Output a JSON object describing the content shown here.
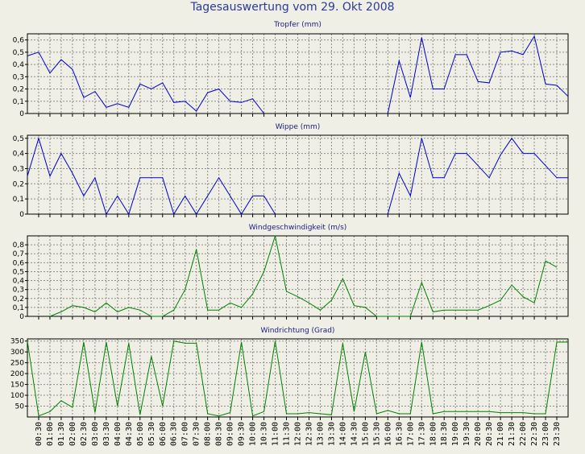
{
  "title": "Tagesauswertung vom 29. Okt 2008",
  "colors": {
    "blue": "#0000cc",
    "green": "#008000",
    "grid": "#8c8c8c",
    "background": "#efefe6"
  },
  "x_labels": [
    "00:30",
    "01:00",
    "01:30",
    "02:00",
    "02:30",
    "03:00",
    "03:30",
    "04:00",
    "04:30",
    "05:00",
    "05:30",
    "06:00",
    "06:30",
    "07:00",
    "07:30",
    "08:00",
    "08:30",
    "09:00",
    "09:30",
    "10:00",
    "10:30",
    "11:00",
    "11:30",
    "12:00",
    "12:30",
    "13:00",
    "13:30",
    "14:00",
    "14:30",
    "15:00",
    "15:30",
    "16:00",
    "16:30",
    "17:00",
    "17:30",
    "18:00",
    "18:30",
    "19:00",
    "19:30",
    "20:00",
    "20:30",
    "21:00",
    "21:30",
    "22:00",
    "22:30",
    "23:00",
    "23:30"
  ],
  "chart_data": [
    {
      "type": "line",
      "title": "Tropfer (mm)",
      "color": "#0000cc",
      "ylim": [
        0,
        0.65
      ],
      "yticks": [
        0,
        0.1,
        0.2,
        0.3,
        0.4,
        0.5,
        0.6
      ],
      "ytick_labels": [
        "0",
        "0,1",
        "0,2",
        "0,3",
        "0,4",
        "0,5",
        "0,6"
      ],
      "x": [
        "00:00",
        "00:30",
        "01:00",
        "01:30",
        "02:00",
        "02:30",
        "03:00",
        "03:30",
        "04:00",
        "04:30",
        "05:00",
        "05:30",
        "06:00",
        "06:30",
        "07:00",
        "07:30",
        "08:00",
        "08:30",
        "09:00",
        "09:30",
        "10:00",
        "10:30",
        "11:00",
        "11:30",
        "12:00",
        "12:30",
        "13:00",
        "13:30",
        "14:00",
        "14:30",
        "15:00",
        "15:30",
        "16:00",
        "16:30",
        "17:00",
        "17:30",
        "18:00",
        "18:30",
        "19:00",
        "19:30",
        "20:00",
        "20:30",
        "21:00",
        "21:30",
        "22:00",
        "22:30",
        "23:00",
        "23:30",
        "23:59"
      ],
      "values": [
        0.47,
        0.5,
        0.33,
        0.44,
        0.36,
        0.13,
        0.18,
        0.05,
        0.08,
        0.05,
        0.24,
        0.2,
        0.25,
        0.09,
        0.1,
        0.02,
        0.17,
        0.2,
        0.1,
        0.09,
        0.12,
        0,
        null,
        null,
        null,
        null,
        null,
        null,
        null,
        null,
        null,
        null,
        0,
        0.43,
        0.13,
        0.62,
        0.2,
        0.2,
        0.48,
        0.48,
        0.26,
        0.25,
        0.5,
        0.51,
        0.48,
        0.63,
        0.24,
        0.23,
        0.14
      ]
    },
    {
      "type": "line",
      "title": "Wippe (mm)",
      "color": "#0000cc",
      "ylim": [
        0,
        0.52
      ],
      "yticks": [
        0,
        0.1,
        0.2,
        0.3,
        0.4,
        0.5
      ],
      "ytick_labels": [
        "0",
        "0,1",
        "0,2",
        "0,3",
        "0,4",
        "0,5"
      ],
      "x": [
        "00:00",
        "00:30",
        "01:00",
        "01:30",
        "02:00",
        "02:30",
        "03:00",
        "03:30",
        "04:00",
        "04:30",
        "05:00",
        "05:30",
        "06:00",
        "06:30",
        "07:00",
        "07:30",
        "08:00",
        "08:30",
        "09:00",
        "09:30",
        "10:00",
        "10:30",
        "11:00",
        "11:30",
        "12:00",
        "12:30",
        "13:00",
        "13:30",
        "14:00",
        "14:30",
        "15:00",
        "15:30",
        "16:00",
        "16:30",
        "17:00",
        "17:30",
        "18:00",
        "18:30",
        "19:00",
        "19:30",
        "20:00",
        "20:30",
        "21:00",
        "21:30",
        "22:00",
        "22:30",
        "23:00",
        "23:30",
        "23:59"
      ],
      "values": [
        0.25,
        0.5,
        0.25,
        0.4,
        0.27,
        0.12,
        0.24,
        0,
        0.12,
        0,
        0.24,
        0.24,
        0.24,
        0,
        0.12,
        0,
        0.12,
        0.24,
        0.12,
        0,
        0.12,
        0.12,
        0,
        null,
        null,
        null,
        null,
        null,
        null,
        null,
        null,
        null,
        0,
        0.27,
        0.12,
        0.5,
        0.24,
        0.24,
        0.4,
        0.4,
        0.32,
        0.24,
        0.39,
        0.5,
        0.4,
        0.4,
        0.32,
        0.24,
        0.24
      ]
    },
    {
      "type": "line",
      "title": "Windgeschwindigkeit (m/s)",
      "color": "#008000",
      "ylim": [
        0,
        0.9
      ],
      "yticks": [
        0,
        0.1,
        0.2,
        0.3,
        0.4,
        0.5,
        0.6,
        0.7,
        0.8
      ],
      "ytick_labels": [
        "0",
        "0,1",
        "0,2",
        "0,3",
        "0,4",
        "0,5",
        "0,6",
        "0,7",
        "0,8"
      ],
      "x": [
        "00:00",
        "00:30",
        "01:00",
        "01:30",
        "02:00",
        "02:30",
        "03:00",
        "03:30",
        "04:00",
        "04:30",
        "05:00",
        "05:30",
        "06:00",
        "06:30",
        "07:00",
        "07:30",
        "08:00",
        "08:30",
        "09:00",
        "09:30",
        "10:00",
        "10:30",
        "11:00",
        "11:30",
        "12:00",
        "12:30",
        "13:00",
        "13:30",
        "14:00",
        "14:30",
        "15:00",
        "15:30",
        "16:00",
        "16:30",
        "17:00",
        "17:30",
        "18:00",
        "18:30",
        "19:00",
        "19:30",
        "20:00",
        "20:30",
        "21:00",
        "21:30",
        "22:00",
        "22:30",
        "23:00",
        "23:30",
        "23:59"
      ],
      "values": [
        null,
        null,
        0,
        0.05,
        0.12,
        0.1,
        0.05,
        0.15,
        0.05,
        0.1,
        0.07,
        0,
        0,
        0.07,
        0.3,
        0.75,
        0.07,
        0.07,
        0.15,
        0.1,
        0.25,
        0.5,
        0.9,
        0.28,
        0.22,
        0.15,
        0.07,
        0.18,
        0.42,
        0.12,
        0.1,
        0,
        0,
        0,
        0,
        0.38,
        0.05,
        0.07,
        0.07,
        0.07,
        0.07,
        0.12,
        0.18,
        0.35,
        0.22,
        0.15,
        0.62,
        0.55,
        null
      ]
    },
    {
      "type": "line",
      "title": "Windrichtung (Grad)",
      "color": "#008000",
      "ylim": [
        0,
        360
      ],
      "yticks": [
        50,
        100,
        150,
        200,
        250,
        300,
        350
      ],
      "ytick_labels": [
        "50",
        "100",
        "150",
        "200",
        "250",
        "300",
        "350"
      ],
      "x": [
        "00:00",
        "00:30",
        "01:00",
        "01:30",
        "02:00",
        "02:30",
        "03:00",
        "03:30",
        "04:00",
        "04:30",
        "05:00",
        "05:30",
        "06:00",
        "06:30",
        "07:00",
        "07:30",
        "08:00",
        "08:30",
        "09:00",
        "09:30",
        "10:00",
        "10:30",
        "11:00",
        "11:30",
        "12:00",
        "12:30",
        "13:00",
        "13:30",
        "14:00",
        "14:30",
        "15:00",
        "15:30",
        "16:00",
        "16:30",
        "17:00",
        "17:30",
        "18:00",
        "18:30",
        "19:00",
        "19:30",
        "20:00",
        "20:30",
        "21:00",
        "21:30",
        "22:00",
        "22:30",
        "23:00",
        "23:30",
        "23:59"
      ],
      "values": [
        350,
        5,
        25,
        75,
        45,
        345,
        20,
        345,
        50,
        340,
        10,
        280,
        50,
        350,
        340,
        340,
        15,
        5,
        20,
        345,
        5,
        25,
        350,
        15,
        15,
        20,
        15,
        10,
        340,
        25,
        300,
        15,
        30,
        15,
        15,
        345,
        15,
        25,
        25,
        25,
        25,
        25,
        20,
        20,
        20,
        15,
        15,
        345,
        345
      ]
    }
  ]
}
